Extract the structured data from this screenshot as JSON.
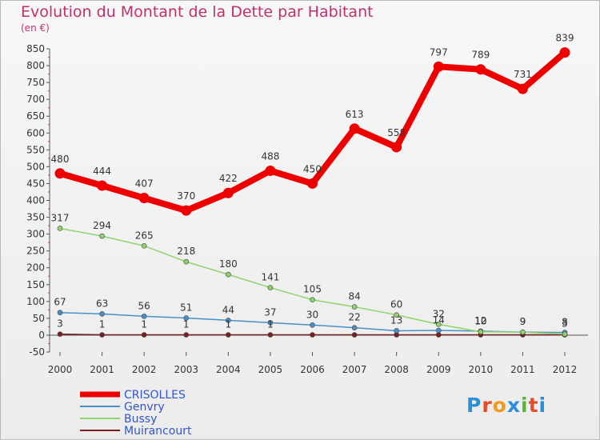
{
  "header": {
    "title": "Evolution du Montant de la Dette par Habitant",
    "subtitle": "(en €)"
  },
  "logo": {
    "letters": [
      "P",
      "r",
      "o",
      "x",
      "i",
      "t",
      "i"
    ],
    "colors": [
      "#2a8fd6",
      "#e34b2a",
      "#f29a1c",
      "#2a8fd6",
      "#5cb531",
      "#e34b2a",
      "#2a8fd6"
    ]
  },
  "chart_data": {
    "type": "line",
    "title": "Evolution du Montant de la Dette par Habitant",
    "ylabel": "(en €)",
    "xlabel": "",
    "x": [
      2000,
      2001,
      2002,
      2003,
      2004,
      2005,
      2006,
      2007,
      2008,
      2009,
      2010,
      2011,
      2012
    ],
    "ylim": [
      -50,
      850
    ],
    "yticks": [
      -50,
      0,
      50,
      100,
      150,
      200,
      250,
      300,
      350,
      400,
      450,
      500,
      550,
      600,
      650,
      700,
      750,
      800,
      850
    ],
    "grid": false,
    "legend": "bottom-left",
    "series": [
      {
        "name": "Muirancourt",
        "color": "#7a1f1f",
        "values": [
          3,
          1,
          1,
          1,
          1,
          1,
          1,
          1,
          1,
          1,
          1,
          1,
          1
        ],
        "labels": [
          "3",
          "1",
          "1",
          "1",
          "1",
          "1",
          "",
          "",
          "",
          "",
          "",
          "",
          ""
        ]
      },
      {
        "name": "Genvry",
        "color": "#4a90c8",
        "values": [
          67,
          63,
          56,
          51,
          44,
          37,
          30,
          22,
          13,
          14,
          12,
          9,
          8
        ],
        "labels": [
          "67",
          "63",
          "56",
          "51",
          "44",
          "37",
          "30",
          "22",
          "13",
          "14",
          "12",
          "9",
          "8"
        ]
      },
      {
        "name": "Bussy",
        "color": "#8fd46a",
        "values": [
          317,
          294,
          265,
          218,
          180,
          141,
          105,
          84,
          60,
          32,
          10,
          9,
          3
        ],
        "labels": [
          "317",
          "294",
          "265",
          "218",
          "180",
          "141",
          "105",
          "84",
          "60",
          "32",
          "10",
          "9",
          "3"
        ]
      },
      {
        "name": "CRISOLLES",
        "color": "#ee0000",
        "values": [
          480,
          444,
          407,
          370,
          422,
          488,
          450,
          613,
          558,
          797,
          789,
          731,
          839
        ],
        "labels": [
          "480",
          "444",
          "407",
          "370",
          "422",
          "488",
          "450",
          "613",
          "558",
          "797",
          "789",
          "731",
          "839"
        ]
      }
    ]
  }
}
